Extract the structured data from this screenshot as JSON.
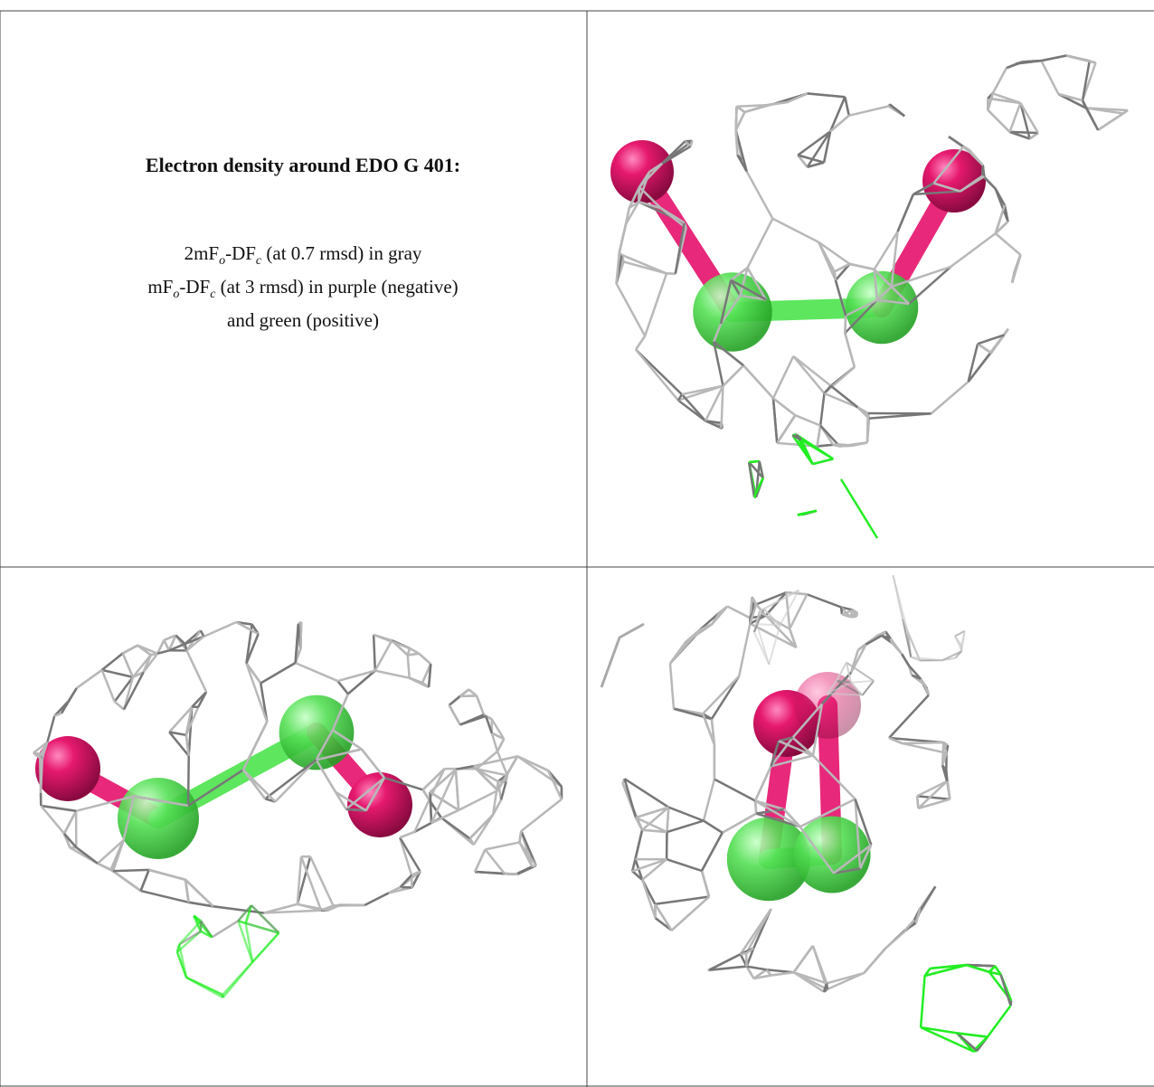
{
  "header": {
    "title": "Electron density around EDO G 401:"
  },
  "legend": {
    "lines": [
      [
        "2mF",
        "o",
        "-DF",
        "c",
        " (at 0.7 rmsd) in gray"
      ],
      [
        "mF",
        "o",
        "-DF",
        "c",
        " (at 3 rmsd) in purple (negative)"
      ],
      [
        "and green (positive)"
      ]
    ]
  }
}
